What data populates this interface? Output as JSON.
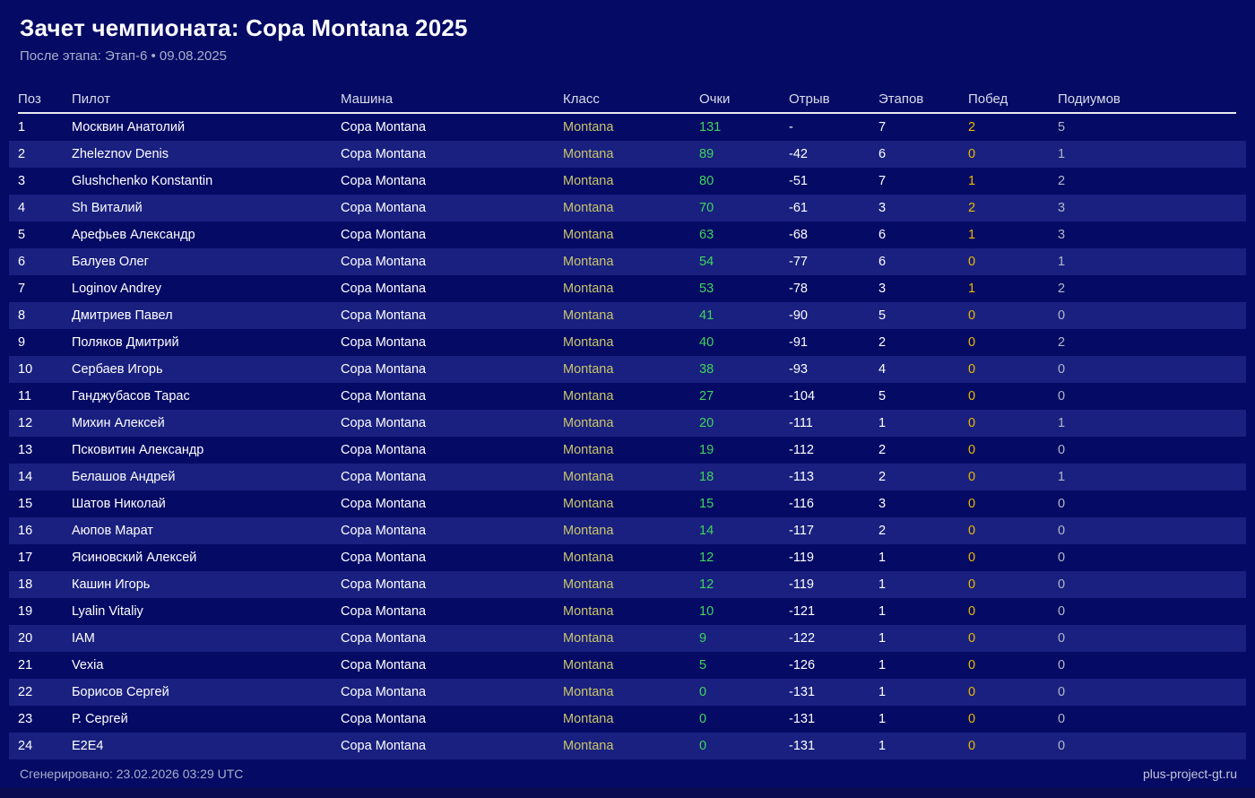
{
  "header": {
    "title": "Зачет чемпионата: Copa Montana 2025",
    "subtitle": "После этапа: Этап-6 • 09.08.2025"
  },
  "footer": {
    "generated": "Сгенерировано: 23.02.2026 03:29 UTC",
    "site": "plus-project-gt.ru"
  },
  "colors": {
    "background": "#050a65",
    "stripe": "#19207f",
    "divider": "#e9eaf2",
    "header_text": "#d8dbe8",
    "muted_text": "#a9aec9",
    "class_color": "#c9c56c",
    "points_color": "#3ed65b",
    "wins_color": "#ecba00",
    "podiums_color": "#b4b7c6",
    "site_color": "#c3c6d8",
    "bottom_bar": "#0b0b52"
  },
  "table": {
    "headers": [
      "Поз",
      "Пилот",
      "Машина",
      "Класс",
      "Очки",
      "Отрыв",
      "Этапов",
      "Побед",
      "Подиумов"
    ],
    "header_keys": [
      "pos",
      "pilot",
      "car",
      "class",
      "points",
      "gap",
      "stages",
      "wins",
      "podiums"
    ],
    "rows": [
      {
        "pos": "1",
        "pilot": "Москвин Анатолий",
        "car": "Copa Montana",
        "class": "Montana",
        "points": "131",
        "gap": "-",
        "stages": "7",
        "wins": "2",
        "podiums": "5"
      },
      {
        "pos": "2",
        "pilot": "Zheleznov Denis",
        "car": "Copa Montana",
        "class": "Montana",
        "points": "89",
        "gap": "-42",
        "stages": "6",
        "wins": "0",
        "podiums": "1"
      },
      {
        "pos": "3",
        "pilot": "Glushchenko Konstantin",
        "car": "Copa Montana",
        "class": "Montana",
        "points": "80",
        "gap": "-51",
        "stages": "7",
        "wins": "1",
        "podiums": "2"
      },
      {
        "pos": "4",
        "pilot": "Sh Виталий",
        "car": "Copa Montana",
        "class": "Montana",
        "points": "70",
        "gap": "-61",
        "stages": "3",
        "wins": "2",
        "podiums": "3"
      },
      {
        "pos": "5",
        "pilot": "Арефьев Александр",
        "car": "Copa Montana",
        "class": "Montana",
        "points": "63",
        "gap": "-68",
        "stages": "6",
        "wins": "1",
        "podiums": "3"
      },
      {
        "pos": "6",
        "pilot": "Балуев Олег",
        "car": "Copa Montana",
        "class": "Montana",
        "points": "54",
        "gap": "-77",
        "stages": "6",
        "wins": "0",
        "podiums": "1"
      },
      {
        "pos": "7",
        "pilot": "Loginov Andrey",
        "car": "Copa Montana",
        "class": "Montana",
        "points": "53",
        "gap": "-78",
        "stages": "3",
        "wins": "1",
        "podiums": "2"
      },
      {
        "pos": "8",
        "pilot": "Дмитриев Павел",
        "car": "Copa Montana",
        "class": "Montana",
        "points": "41",
        "gap": "-90",
        "stages": "5",
        "wins": "0",
        "podiums": "0"
      },
      {
        "pos": "9",
        "pilot": "Поляков Дмитрий",
        "car": "Copa Montana",
        "class": "Montana",
        "points": "40",
        "gap": "-91",
        "stages": "2",
        "wins": "0",
        "podiums": "2"
      },
      {
        "pos": "10",
        "pilot": "Сербаев Игорь",
        "car": "Copa Montana",
        "class": "Montana",
        "points": "38",
        "gap": "-93",
        "stages": "4",
        "wins": "0",
        "podiums": "0"
      },
      {
        "pos": "11",
        "pilot": "Ганджубасов Тарас",
        "car": "Copa Montana",
        "class": "Montana",
        "points": "27",
        "gap": "-104",
        "stages": "5",
        "wins": "0",
        "podiums": "0"
      },
      {
        "pos": "12",
        "pilot": "Михин Алексей",
        "car": "Copa Montana",
        "class": "Montana",
        "points": "20",
        "gap": "-111",
        "stages": "1",
        "wins": "0",
        "podiums": "1"
      },
      {
        "pos": "13",
        "pilot": "Псковитин Александр",
        "car": "Copa Montana",
        "class": "Montana",
        "points": "19",
        "gap": "-112",
        "stages": "2",
        "wins": "0",
        "podiums": "0"
      },
      {
        "pos": "14",
        "pilot": "Белашов Андрей",
        "car": "Copa Montana",
        "class": "Montana",
        "points": "18",
        "gap": "-113",
        "stages": "2",
        "wins": "0",
        "podiums": "1"
      },
      {
        "pos": "15",
        "pilot": "Шатов Николай",
        "car": "Copa Montana",
        "class": "Montana",
        "points": "15",
        "gap": "-116",
        "stages": "3",
        "wins": "0",
        "podiums": "0"
      },
      {
        "pos": "16",
        "pilot": "Аюпов Марат",
        "car": "Copa Montana",
        "class": "Montana",
        "points": "14",
        "gap": "-117",
        "stages": "2",
        "wins": "0",
        "podiums": "0"
      },
      {
        "pos": "17",
        "pilot": "Ясиновский Алексей",
        "car": "Copa Montana",
        "class": "Montana",
        "points": "12",
        "gap": "-119",
        "stages": "1",
        "wins": "0",
        "podiums": "0"
      },
      {
        "pos": "18",
        "pilot": "Кашин Игорь",
        "car": "Copa Montana",
        "class": "Montana",
        "points": "12",
        "gap": "-119",
        "stages": "1",
        "wins": "0",
        "podiums": "0"
      },
      {
        "pos": "19",
        "pilot": "Lyalin Vitaliy",
        "car": "Copa Montana",
        "class": "Montana",
        "points": "10",
        "gap": "-121",
        "stages": "1",
        "wins": "0",
        "podiums": "0"
      },
      {
        "pos": "20",
        "pilot": "IAM",
        "car": "Copa Montana",
        "class": "Montana",
        "points": "9",
        "gap": "-122",
        "stages": "1",
        "wins": "0",
        "podiums": "0"
      },
      {
        "pos": "21",
        "pilot": "Vexia",
        "car": "Copa Montana",
        "class": "Montana",
        "points": "5",
        "gap": "-126",
        "stages": "1",
        "wins": "0",
        "podiums": "0"
      },
      {
        "pos": "22",
        "pilot": "Борисов Сергей",
        "car": "Copa Montana",
        "class": "Montana",
        "points": "0",
        "gap": "-131",
        "stages": "1",
        "wins": "0",
        "podiums": "0"
      },
      {
        "pos": "23",
        "pilot": "Р. Сергей",
        "car": "Copa Montana",
        "class": "Montana",
        "points": "0",
        "gap": "-131",
        "stages": "1",
        "wins": "0",
        "podiums": "0"
      },
      {
        "pos": "24",
        "pilot": "E2E4",
        "car": "Copa Montana",
        "class": "Montana",
        "points": "0",
        "gap": "-131",
        "stages": "1",
        "wins": "0",
        "podiums": "0"
      }
    ]
  }
}
